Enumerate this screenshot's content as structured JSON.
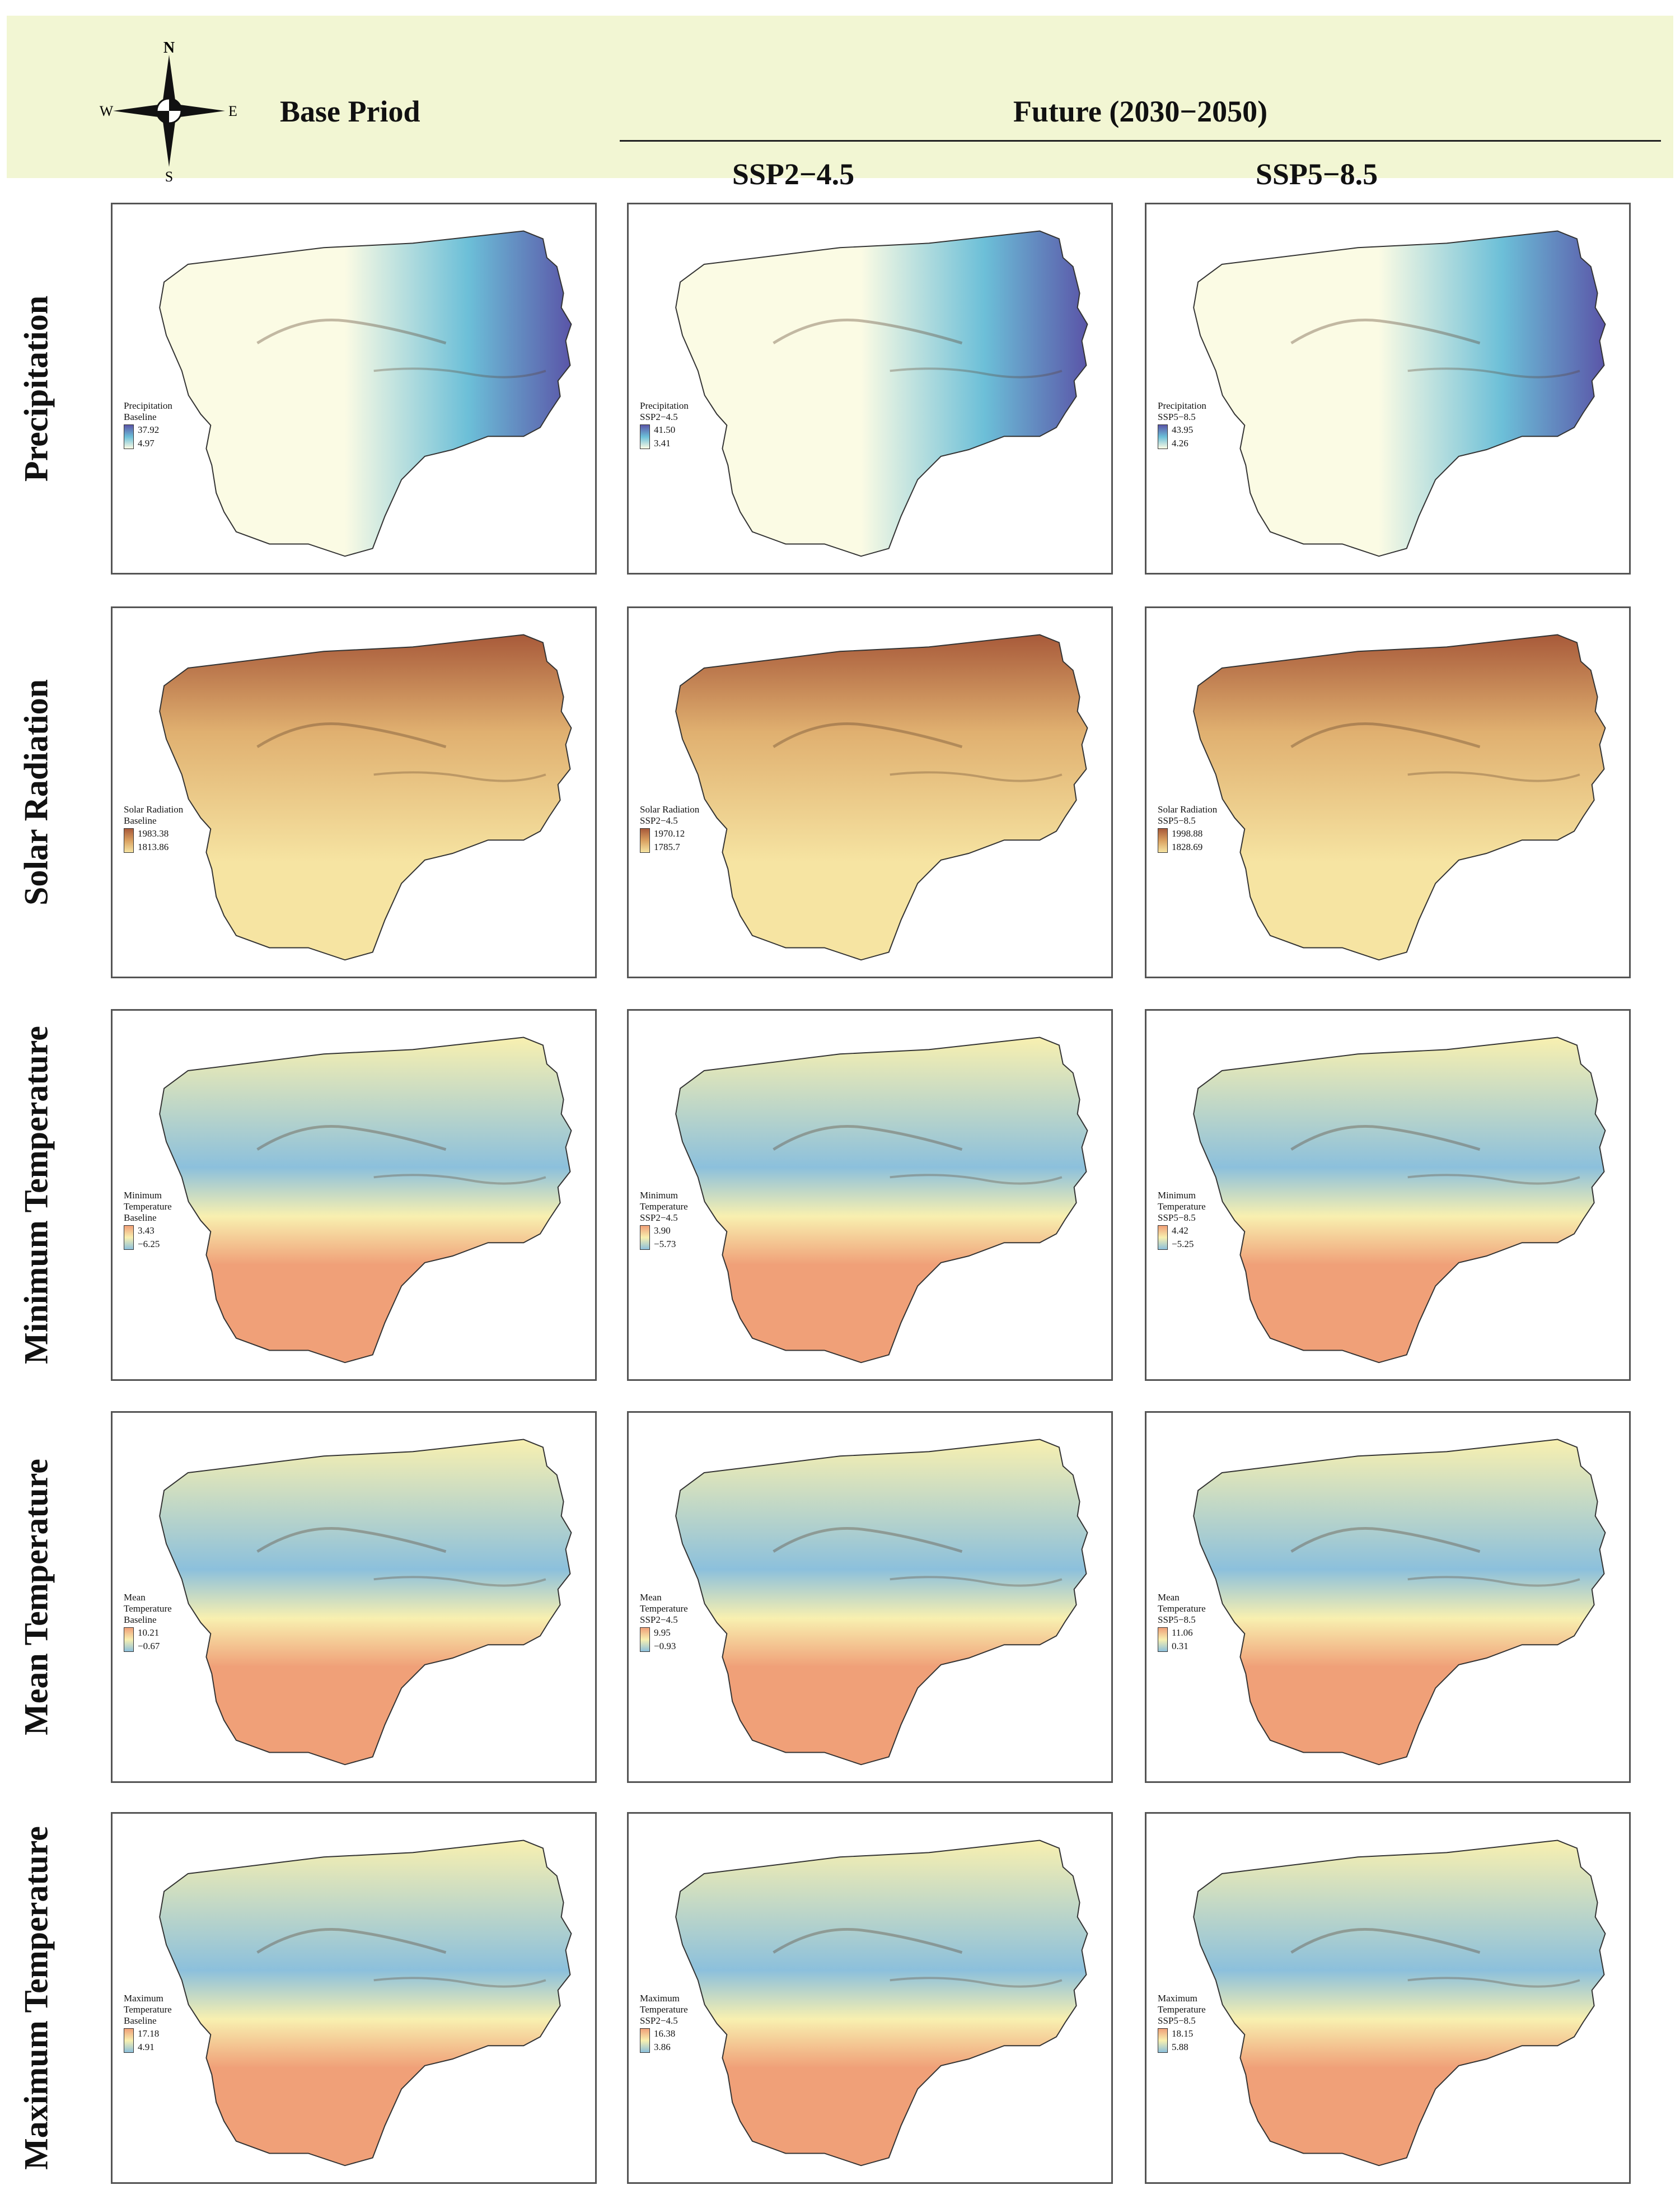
{
  "header": {
    "compass": {
      "n": "N",
      "s": "S",
      "e": "E",
      "w": "W",
      "icon": "compass-rose-icon"
    },
    "base_period": "Base Priod",
    "future": "Future (2030−2050)",
    "scenarios": [
      "SSP2−4.5",
      "SSP5−8.5"
    ]
  },
  "rows": [
    {
      "label": "Precipitation",
      "ramp": "precipitation",
      "panels": [
        {
          "title": "Precipitation",
          "scenario": "Baseline",
          "max": "37.92",
          "min": "4.97"
        },
        {
          "title": "Precipitation",
          "scenario": "SSP2−4.5",
          "max": "41.50",
          "min": "3.41"
        },
        {
          "title": "Precipitation",
          "scenario": "SSP5−8.5",
          "max": "43.95",
          "min": "4.26"
        }
      ]
    },
    {
      "label": "Solar Radiation",
      "ramp": "solar",
      "panels": [
        {
          "title": "Solar Radiation",
          "scenario": "Baseline",
          "max": "1983.38",
          "min": "1813.86"
        },
        {
          "title": "Solar Radiation",
          "scenario": "SSP2−4.5",
          "max": "1970.12",
          "min": "1785.7"
        },
        {
          "title": "Solar Radiation",
          "scenario": "SSP5−8.5",
          "max": "1998.88",
          "min": "1828.69"
        }
      ]
    },
    {
      "label": "Minimum Temperature",
      "ramp": "temperature",
      "panels": [
        {
          "title": "Minimum Temperature",
          "scenario": "Baseline",
          "max": "3.43",
          "min": "−6.25"
        },
        {
          "title": "Minimum Temperature",
          "scenario": "SSP2−4.5",
          "max": "3.90",
          "min": "−5.73"
        },
        {
          "title": "Minimum Temperature",
          "scenario": "SSP5−8.5",
          "max": "4.42",
          "min": "−5.25"
        }
      ]
    },
    {
      "label": "Mean Temperature",
      "ramp": "temperature",
      "panels": [
        {
          "title": "Mean Temperature",
          "scenario": "Baseline",
          "max": "10.21",
          "min": "−0.67"
        },
        {
          "title": "Mean Temperature",
          "scenario": "SSP2−4.5",
          "max": "9.95",
          "min": "−0.93"
        },
        {
          "title": "Mean Temperature",
          "scenario": "SSP5−8.5",
          "max": "11.06",
          "min": "0.31"
        }
      ]
    },
    {
      "label": "Maximum Temperature",
      "ramp": "temperature",
      "panels": [
        {
          "title": "Maximum Temperature",
          "scenario": "Baseline",
          "max": "17.18",
          "min": "4.91"
        },
        {
          "title": "Maximum Temperature",
          "scenario": "SSP2−4.5",
          "max": "16.38",
          "min": "3.86"
        },
        {
          "title": "Maximum Temperature",
          "scenario": "SSP5−8.5",
          "max": "18.15",
          "min": "5.88"
        }
      ]
    }
  ],
  "colors": {
    "header_bg": "#f2f6d3",
    "precip_low": "#fbfbe4",
    "precip_mid": "#6cbfd8",
    "precip_high": "#5a55a8",
    "solar_low": "#f6e4a2",
    "solar_high": "#a85a3a",
    "temp_warm": "#f0a078",
    "temp_mid": "#f8f0b0",
    "temp_cool": "#8cc0dc"
  }
}
